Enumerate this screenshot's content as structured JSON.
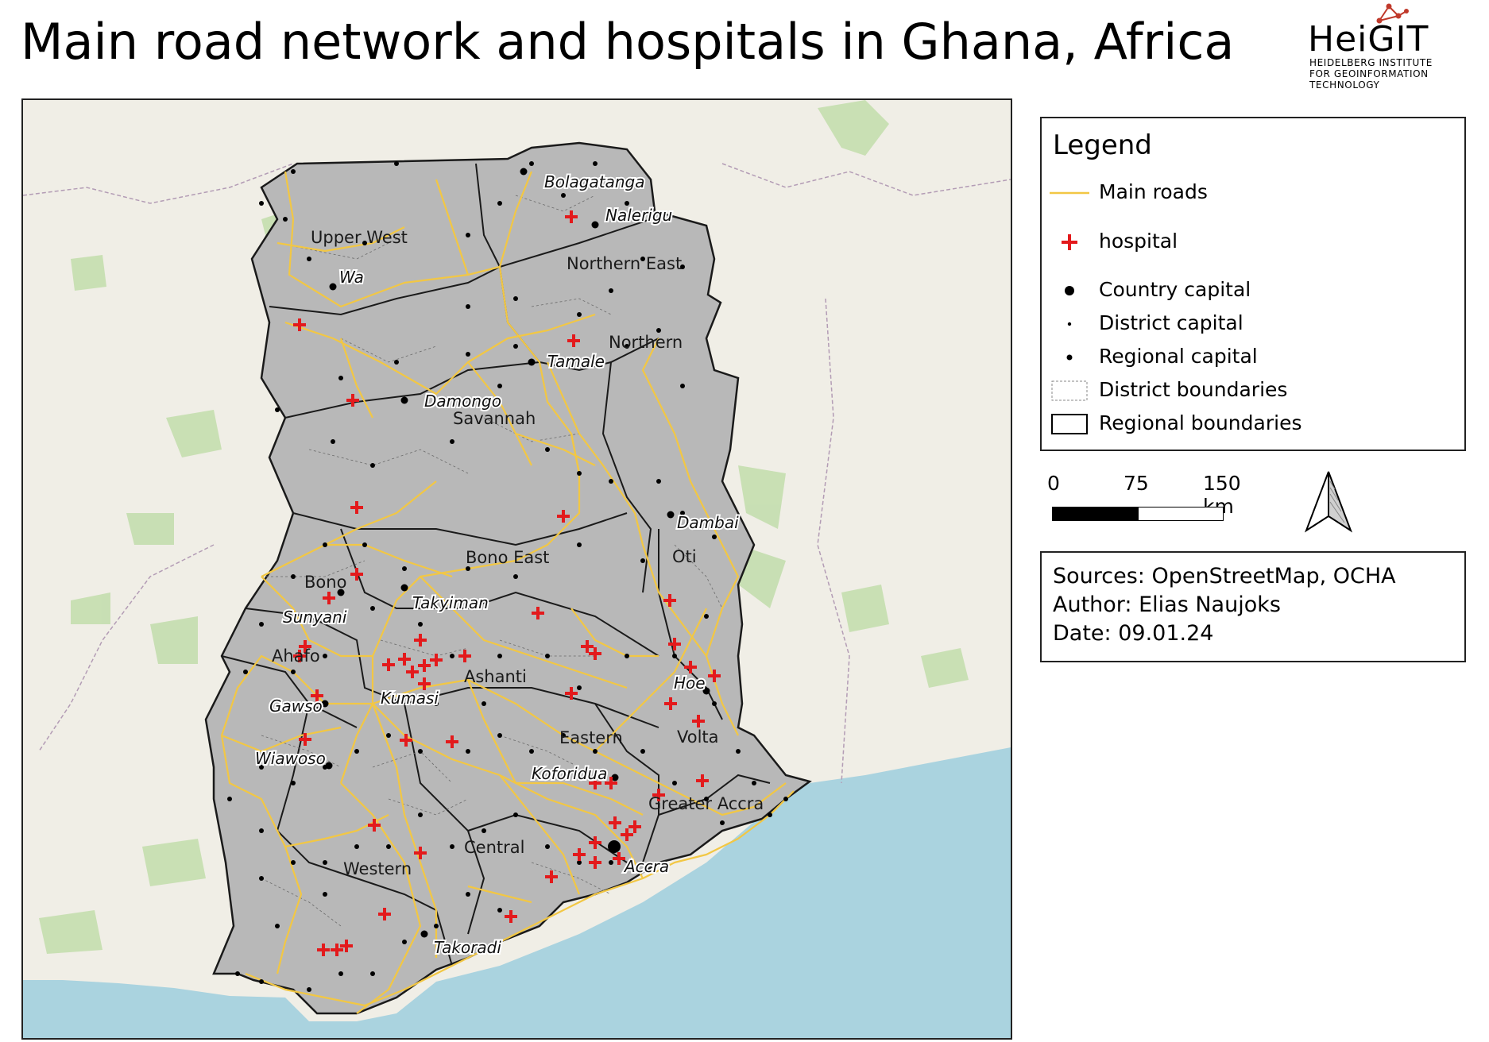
{
  "title": "Main road network and hospitals in Ghana, Africa",
  "logo": {
    "wordmark": "HeiGIT",
    "lines": [
      "HEIDELBERG INSTITUTE",
      "FOR GEOINFORMATION",
      "TECHNOLOGY"
    ]
  },
  "map": {
    "colors": {
      "sea": "#aad3df",
      "land": "#f0eee6",
      "forest": "#bfdca8",
      "ghana_fill": "#b8b8b8",
      "roads": "#f2c744",
      "hospital": "#e31a1c",
      "boundary": "#1a1a1a"
    },
    "region_labels": [
      "Upper West",
      "Northern East",
      "Northern",
      "Savannah",
      "Bono East",
      "Oti",
      "Bono",
      "Ahafo",
      "Ashanti",
      "Eastern",
      "Volta",
      "Greater Accra",
      "Central",
      "Western"
    ],
    "city_labels": [
      "Bolagatanga",
      "Nalerigu",
      "Wa",
      "Tamale",
      "Damongo",
      "Dambai",
      "Sunyani",
      "Takyiman",
      "Kumasi",
      "Hoe",
      "Gawso",
      "Wiawoso",
      "Koforidua",
      "Accra",
      "Takoradi"
    ]
  },
  "legend": {
    "title": "Legend",
    "items": [
      {
        "label": "Main roads",
        "symbol": "line"
      },
      {
        "label": "hospital",
        "symbol": "cross"
      },
      {
        "label": "Country capital",
        "symbol": "large-dot"
      },
      {
        "label": "District capital",
        "symbol": "small-dot"
      },
      {
        "label": "Regional capital",
        "symbol": "medium-dot"
      },
      {
        "label": "District boundaries",
        "symbol": "dashed-box"
      },
      {
        "label": "Regional boundaries",
        "symbol": "solid-box"
      }
    ]
  },
  "scale": {
    "ticks": [
      "0",
      "75",
      "150 km"
    ]
  },
  "north_arrow_icon": "north-arrow-icon",
  "sources": {
    "line1": "Sources: OpenStreetMap, OCHA",
    "line2": "Author: Elias Naujoks",
    "line3": "Date: 09.01.24"
  }
}
